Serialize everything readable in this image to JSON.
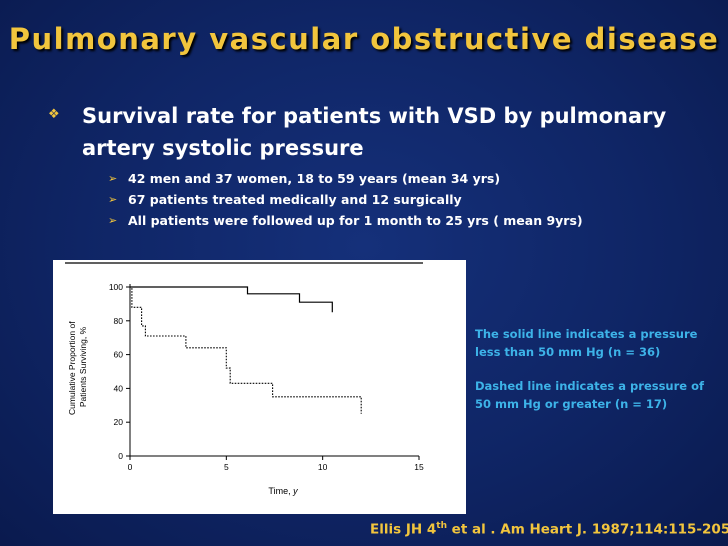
{
  "slide": {
    "title": "Pulmonary vascular obstructive disease",
    "main_bullet": "Survival rate for patients with VSD by pulmonary artery systolic pressure",
    "sub_bullets": [
      "42 men and 37 women,  18 to 59 years (mean 34 yrs)",
      "67 patients treated medically and 12 surgically",
      "All patients were followed up for 1 month to 25 yrs ( mean 9yrs)"
    ],
    "notes": [
      "The solid line indicates a pressure less than 50 mm Hg (n = 36)",
      "Dashed line indicates a pressure of 50 mm Hg or greater (n = 17)"
    ],
    "citation": {
      "prefix": "Ellis JH 4",
      "superscript": "th",
      "suffix": " et al . Am Heart J. 1987;114:115-205"
    }
  },
  "colors": {
    "background": "#0f2565",
    "title": "#f2c53d",
    "note": "#3db3e8",
    "bullet_marker": "#f2c53d"
  },
  "chart_data": {
    "type": "line",
    "title": "",
    "xlabel": "Time, y",
    "ylabel": "Cumulative Proportion of Patients Surviving, %",
    "xlim": [
      0,
      15
    ],
    "ylim": [
      0,
      100
    ],
    "x_ticks": [
      0,
      5,
      10,
      15
    ],
    "y_ticks": [
      0,
      20,
      40,
      60,
      80,
      100
    ],
    "series": [
      {
        "name": "Pressure < 50 mm Hg (n = 36)",
        "style": "solid",
        "x": [
          0,
          6.1,
          6.1,
          8.8,
          8.8,
          10.5,
          10.5
        ],
        "y": [
          100,
          100,
          96,
          96,
          91,
          91,
          85
        ]
      },
      {
        "name": "Pressure >= 50 mm Hg (n = 17)",
        "style": "dashed",
        "x": [
          0,
          0.1,
          0.1,
          0.6,
          0.6,
          0.8,
          0.8,
          2.9,
          2.9,
          5.0,
          5.0,
          5.2,
          5.2,
          7.4,
          7.4,
          12.0,
          12.0
        ],
        "y": [
          100,
          100,
          88,
          88,
          77,
          77,
          71,
          71,
          64,
          64,
          52,
          52,
          43,
          43,
          35,
          35,
          25
        ]
      }
    ]
  }
}
